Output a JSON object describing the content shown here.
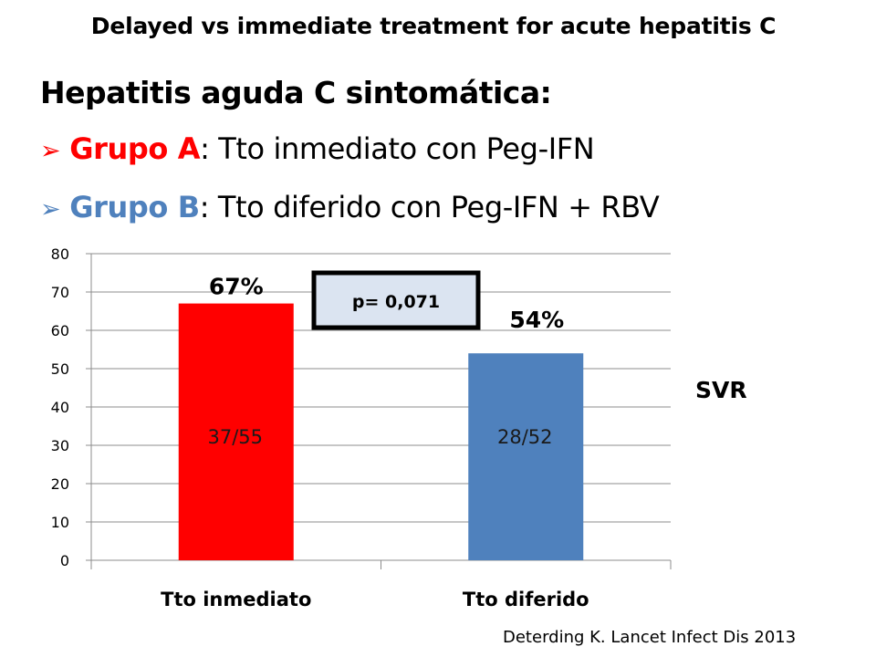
{
  "slide": {
    "title": "Delayed vs immediate treatment for acute hepatitis C",
    "subtitle": "Hepatitis aguda C sintomática:",
    "groups": [
      {
        "bullet": "➢",
        "name": "Grupo A",
        "rest": ": Tto inmediato con Peg-IFN",
        "color": "#ff0000"
      },
      {
        "bullet": "➢",
        "name": "Grupo B",
        "rest": ": Tto diferido con Peg-IFN + RBV",
        "color": "#4f81bd"
      }
    ],
    "citation": "Deterding K. Lancet Infect Dis 2013"
  },
  "chart_data": {
    "type": "bar",
    "categories": [
      "Tto inmediato",
      "Tto diferido"
    ],
    "values": [
      67,
      54
    ],
    "value_labels": [
      "67%",
      "54%"
    ],
    "inner_labels": [
      "37/55",
      "28/52"
    ],
    "colors": [
      "#ff0000",
      "#4f81bd"
    ],
    "ylim": [
      0,
      80
    ],
    "yticks": [
      0,
      10,
      20,
      30,
      40,
      50,
      60,
      70,
      80
    ],
    "side_label": "SVR",
    "annotation": "p= 0,071",
    "annotation_fill": "#dbe4f1",
    "grid": true
  }
}
